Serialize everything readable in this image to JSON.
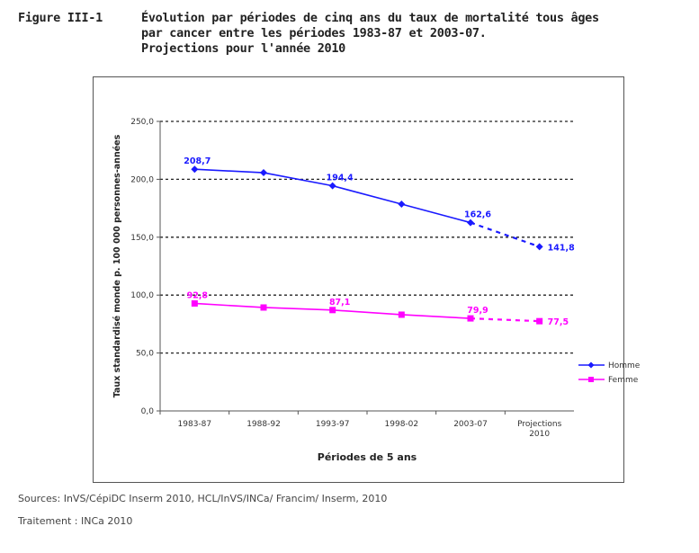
{
  "header": {
    "figure_label": "Figure III-1",
    "title_lines": [
      "Évolution par périodes de cinq ans du taux de mortalité tous âges",
      "par cancer entre les périodes 1983-87 et 2003-07.",
      "Projections pour l'année 2010"
    ]
  },
  "chart_data": {
    "type": "line",
    "categories": [
      "1983-87",
      "1988-92",
      "1993-97",
      "1998-02",
      "2003-07",
      "Projections 2010"
    ],
    "category_lines": [
      [
        "1983-87"
      ],
      [
        "1988-92"
      ],
      [
        "1993-97"
      ],
      [
        "1998-02"
      ],
      [
        "2003-07"
      ],
      [
        "Projections",
        "2010"
      ]
    ],
    "xlabel": "Périodes de 5 ans",
    "ylabel": "Taux standardisé monde p. 100 000 personnes-années",
    "ylim": [
      0,
      250
    ],
    "yticks": [
      "0,0",
      "50,0",
      "100,0",
      "150,0",
      "200,0",
      "250,0"
    ],
    "grid": true,
    "legend_position": "right",
    "series": [
      {
        "name": "Homme",
        "color": "#1a1aff",
        "marker": "diamond",
        "values": [
          208.7,
          205.7,
          194.4,
          178.6,
          162.6,
          141.8
        ],
        "labels": [
          "208,7",
          "",
          "194,4",
          "",
          "162,6",
          "141,8"
        ],
        "projection_dashed_from_index": 4
      },
      {
        "name": "Femme",
        "color": "#ff00ff",
        "marker": "square",
        "values": [
          92.8,
          89.3,
          87.1,
          83.1,
          79.9,
          77.5
        ],
        "labels": [
          "92,8",
          "",
          "87,1",
          "",
          "79,9",
          "77,5"
        ],
        "projection_dashed_from_index": 4
      }
    ]
  },
  "footer": {
    "sources": "Sources: InVS/CépiDC Inserm 2010, HCL/InVS/INCa/ Francim/ Inserm, 2010",
    "treatment": "Traitement : INCa 2010"
  }
}
